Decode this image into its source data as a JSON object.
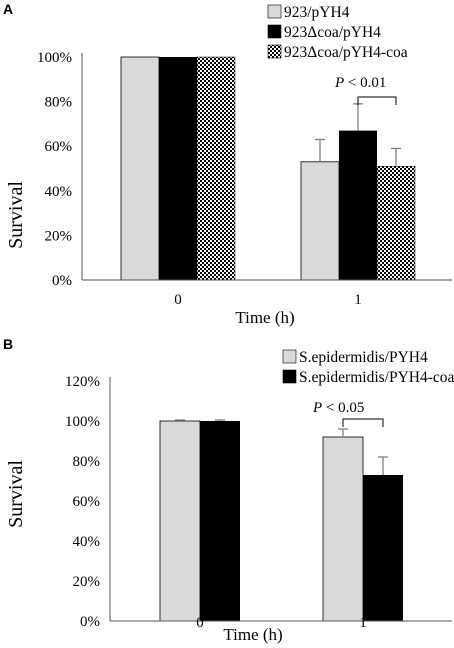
{
  "colors": {
    "light_gray": "#d9d9d9",
    "black": "#000000",
    "checker_dark": "#000000",
    "checker_light": "#ffffff",
    "error": "#808080"
  },
  "chart_data": [
    {
      "panel": "A",
      "type": "bar",
      "categories": [
        "0",
        "1"
      ],
      "xlabel": "Time (h)",
      "ylabel": "Survival",
      "ylim": [
        0,
        100
      ],
      "yticks": [
        "0%",
        "20%",
        "40%",
        "60%",
        "80%",
        "100%"
      ],
      "legend_position": "top-right",
      "series": [
        {
          "name": "923/pYH4",
          "fill": "light_gray",
          "values": [
            100,
            53
          ],
          "errors": [
            0,
            10
          ]
        },
        {
          "name": "923Δcoa/pYH4",
          "fill": "black",
          "values": [
            100,
            67
          ],
          "errors": [
            0,
            12
          ]
        },
        {
          "name": "923Δcoa/pYH4-coa",
          "fill": "checker",
          "values": [
            100,
            51
          ],
          "errors": [
            0,
            8
          ]
        }
      ],
      "annotation": {
        "text_italic": "P",
        "text_rest": " < 0.01",
        "between_series": [
          1,
          2
        ],
        "category_index": 1
      }
    },
    {
      "panel": "B",
      "type": "bar",
      "categories": [
        "0",
        "1"
      ],
      "xlabel": "Time (h)",
      "ylabel": "Survival",
      "ylim": [
        0,
        120
      ],
      "yticks": [
        "0%",
        "20%",
        "40%",
        "60%",
        "80%",
        "100%",
        "120%"
      ],
      "legend_position": "top-left",
      "series": [
        {
          "name": "S.epidermidis/PYH4",
          "fill": "light_gray",
          "values": [
            100,
            92
          ],
          "errors": [
            0.5,
            4
          ]
        },
        {
          "name": "S.epidermidis/PYH4-coa",
          "fill": "black",
          "values": [
            100,
            73
          ],
          "errors": [
            0.5,
            9
          ]
        }
      ],
      "annotation": {
        "text_italic": "P",
        "text_rest": " < 0.05",
        "between_series": [
          0,
          1
        ],
        "category_index": 1
      }
    }
  ]
}
